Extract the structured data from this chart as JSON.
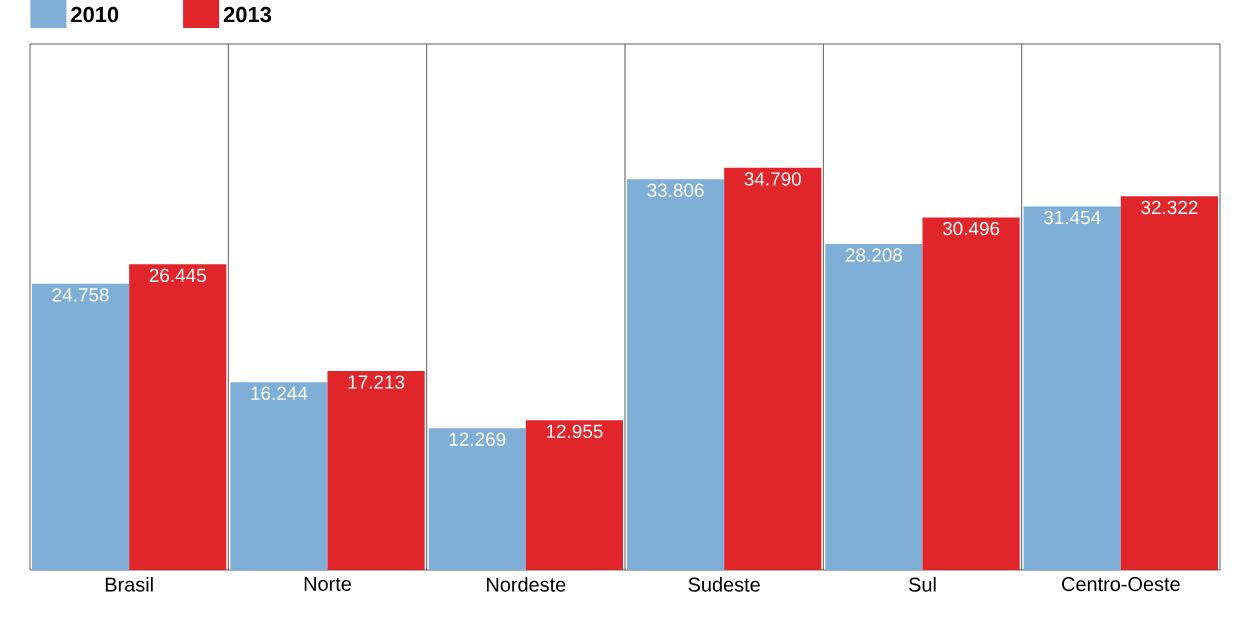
{
  "chart_data": {
    "type": "bar",
    "categories": [
      "Brasil",
      "Norte",
      "Nordeste",
      "Sudeste",
      "Sul",
      "Centro-Oeste"
    ],
    "series": [
      {
        "name": "2010",
        "color": "#7fafd6",
        "values": [
          24758,
          16244,
          12269,
          33806,
          28208,
          31454
        ],
        "value_labels": [
          "24.758",
          "16.244",
          "12.269",
          "33.806",
          "28.208",
          "31.454"
        ]
      },
      {
        "name": "2013",
        "color": "#e0262b",
        "values": [
          26445,
          17213,
          12955,
          34790,
          30496,
          32322
        ],
        "value_labels": [
          "26.445",
          "17.213",
          "12.955",
          "34.790",
          "30.496",
          "32.322"
        ]
      }
    ],
    "ylim": [
      0,
      45500
    ],
    "legend": "top left"
  }
}
